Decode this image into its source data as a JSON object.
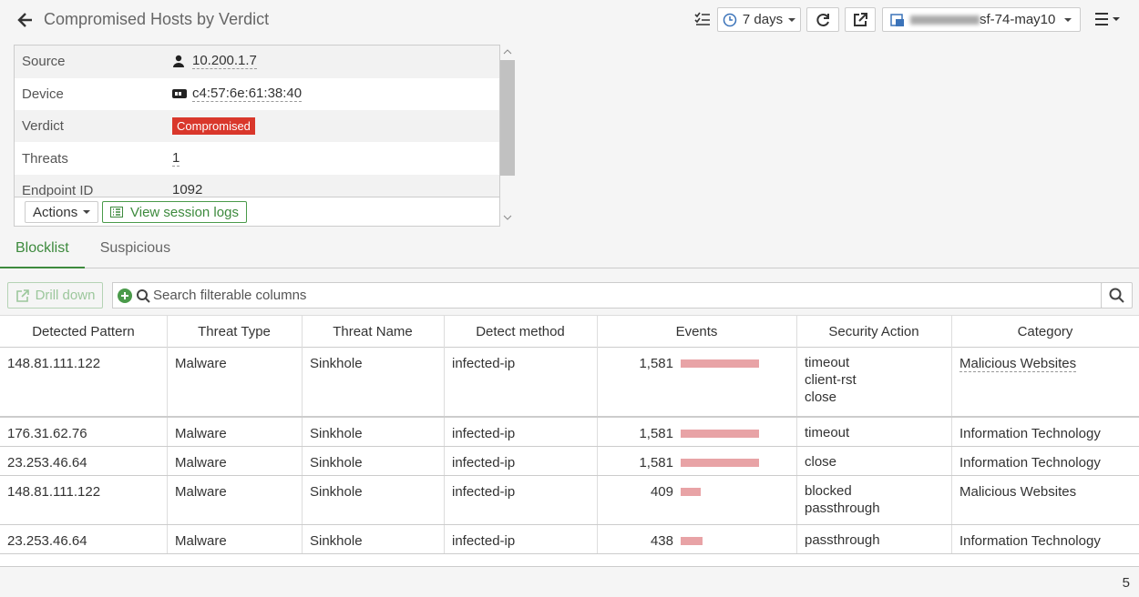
{
  "header": {
    "title": "Compromised Hosts by Verdict",
    "time_range": "7 days",
    "device": "sf-74-may10"
  },
  "details": {
    "rows": [
      [
        "Source",
        "10.200.1.7"
      ],
      [
        "Device",
        "c4:57:6e:61:38:40"
      ],
      [
        "Verdict",
        "Compromised"
      ],
      [
        "Threats",
        "1"
      ],
      [
        "Endpoint ID",
        "1092"
      ]
    ],
    "actions": "Actions",
    "view_logs": "View session logs"
  },
  "tabs": [
    "Blocklist",
    "Suspicious"
  ],
  "toolbar": {
    "drill_down": "Drill down",
    "search_placeholder": "Search filterable columns"
  },
  "table": {
    "columns": [
      "Detected Pattern",
      "Threat Type",
      "Threat Name",
      "Detect method",
      "Events",
      "Security Action",
      "Category"
    ],
    "rows": [
      {
        "pattern": "148.81.111.122",
        "threat_type": "Malware",
        "threat_name": "Sinkhole",
        "detect_method": "infected-ip",
        "events": {
          "value": 1581,
          "label": "1,581"
        },
        "security_action": [
          "timeout",
          "client-rst",
          "close"
        ],
        "category": "Malicious Websites"
      },
      {
        "pattern": "176.31.62.76",
        "threat_type": "Malware",
        "threat_name": "Sinkhole",
        "detect_method": "infected-ip",
        "events": {
          "value": 1581,
          "label": "1,581"
        },
        "security_action": [
          "timeout"
        ],
        "category": "Information Technology"
      },
      {
        "pattern": "23.253.46.64",
        "threat_type": "Malware",
        "threat_name": "Sinkhole",
        "detect_method": "infected-ip",
        "events": {
          "value": 1581,
          "label": "1,581"
        },
        "security_action": [
          "close"
        ],
        "category": "Information Technology"
      },
      {
        "pattern": "148.81.111.122",
        "threat_type": "Malware",
        "threat_name": "Sinkhole",
        "detect_method": "infected-ip",
        "events": {
          "value": 409,
          "label": "409"
        },
        "security_action": [
          "blocked",
          "passthrough"
        ],
        "category": "Malicious Websites"
      },
      {
        "pattern": "23.253.46.64",
        "threat_type": "Malware",
        "threat_name": "Sinkhole",
        "detect_method": "infected-ip",
        "events": {
          "value": 438,
          "label": "438"
        },
        "security_action": [
          "passthrough"
        ],
        "category": "Information Technology"
      }
    ]
  },
  "footer": {
    "count": 5
  }
}
